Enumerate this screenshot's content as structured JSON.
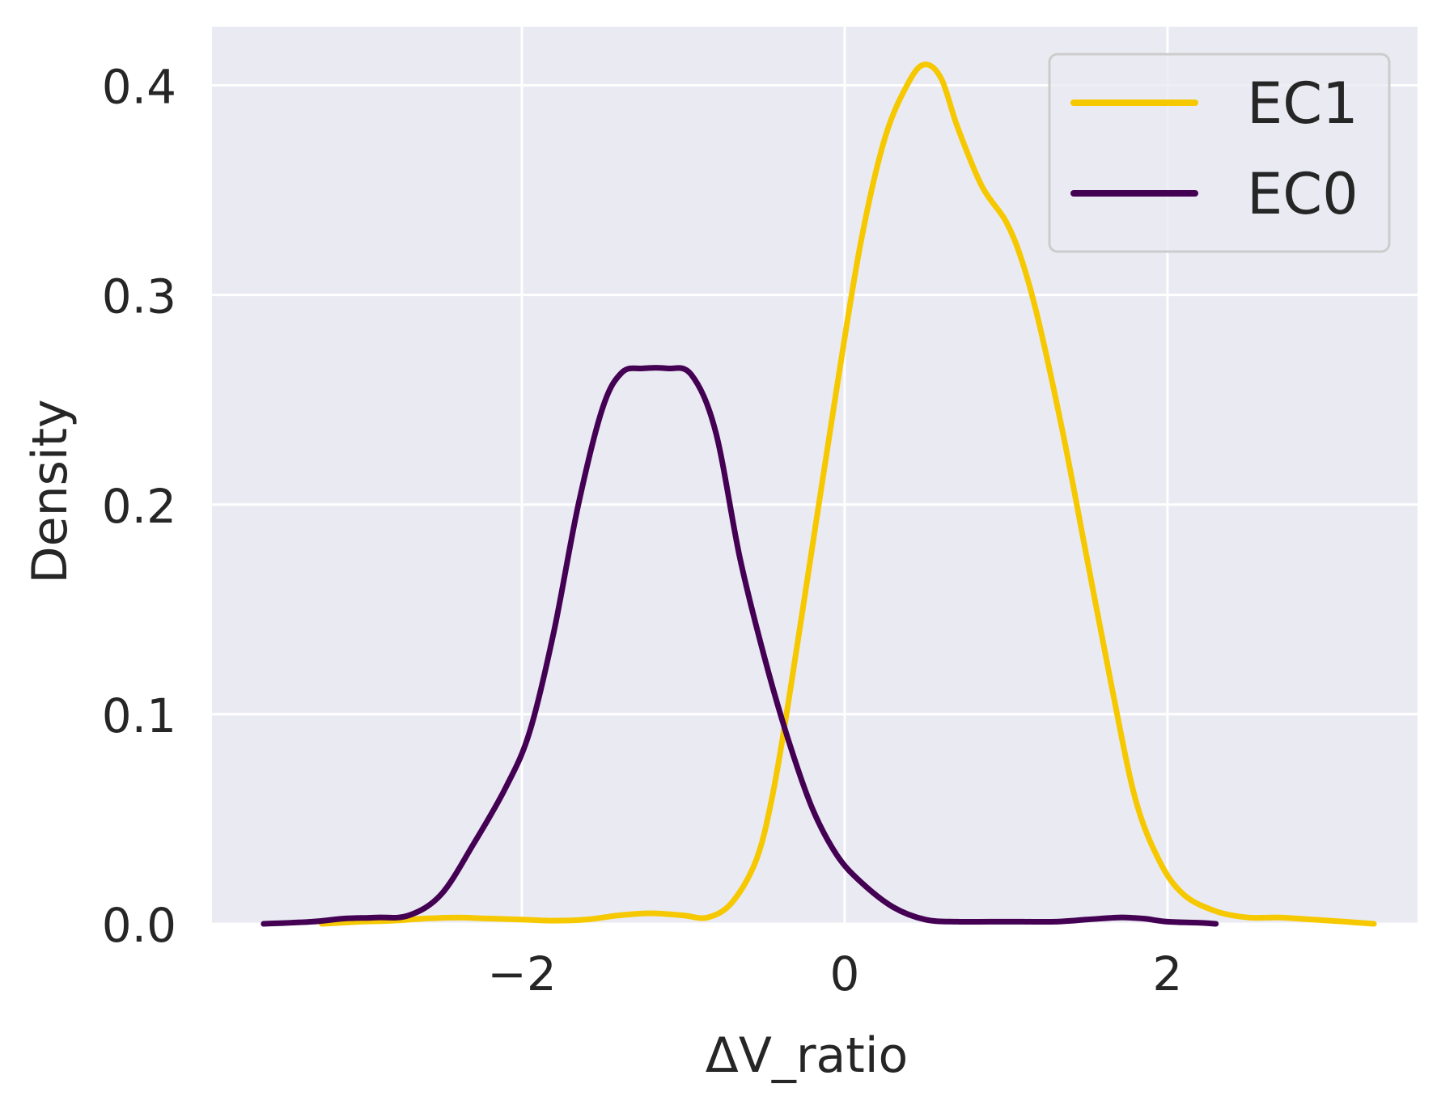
{
  "chart_data": {
    "type": "line",
    "xlabel": "ΔV_ratio",
    "ylabel": "Density",
    "xlim": [
      -3.92,
      3.55
    ],
    "ylim": [
      0,
      0.428
    ],
    "x_ticks": [
      -2,
      0,
      2
    ],
    "x_tick_labels": [
      "−2",
      "0",
      "2"
    ],
    "y_ticks": [
      0.0,
      0.1,
      0.2,
      0.3,
      0.4
    ],
    "y_tick_labels": [
      "0.0",
      "0.1",
      "0.2",
      "0.3",
      "0.4"
    ],
    "grid": true,
    "legend": "top-right",
    "colors": {
      "background": "#eaeaf2",
      "grid": "#ffffff",
      "text": "#262626"
    },
    "series": [
      {
        "name": "EC1",
        "color": "#f5c800",
        "x": [
          -3.24,
          -3.0,
          -2.8,
          -2.6,
          -2.4,
          -2.2,
          -2.0,
          -1.8,
          -1.6,
          -1.4,
          -1.2,
          -1.0,
          -0.85,
          -0.7,
          -0.55,
          -0.45,
          -0.35,
          -0.2,
          -0.05,
          0.1,
          0.25,
          0.4,
          0.5,
          0.6,
          0.7,
          0.85,
          1.0,
          1.1,
          1.2,
          1.35,
          1.5,
          1.65,
          1.8,
          1.95,
          2.1,
          2.3,
          2.5,
          2.7,
          2.9,
          3.1,
          3.28
        ],
        "y": [
          0.0,
          0.001,
          0.0015,
          0.0025,
          0.003,
          0.0025,
          0.002,
          0.0015,
          0.002,
          0.004,
          0.005,
          0.004,
          0.003,
          0.01,
          0.03,
          0.06,
          0.105,
          0.18,
          0.255,
          0.325,
          0.375,
          0.402,
          0.41,
          0.403,
          0.38,
          0.352,
          0.335,
          0.316,
          0.288,
          0.235,
          0.175,
          0.115,
          0.06,
          0.03,
          0.014,
          0.006,
          0.003,
          0.003,
          0.002,
          0.001,
          0.0
        ]
      },
      {
        "name": "EC0",
        "color": "#440154",
        "x": [
          -3.6,
          -3.3,
          -3.1,
          -2.9,
          -2.7,
          -2.5,
          -2.3,
          -2.1,
          -1.95,
          -1.8,
          -1.65,
          -1.5,
          -1.38,
          -1.25,
          -1.1,
          -0.95,
          -0.8,
          -0.65,
          -0.5,
          -0.35,
          -0.2,
          -0.05,
          0.1,
          0.3,
          0.5,
          0.7,
          0.9,
          1.1,
          1.3,
          1.5,
          1.7,
          1.85,
          2.0,
          2.2,
          2.3
        ],
        "y": [
          0.0,
          0.001,
          0.0025,
          0.003,
          0.004,
          0.014,
          0.038,
          0.065,
          0.092,
          0.14,
          0.2,
          0.246,
          0.263,
          0.265,
          0.265,
          0.262,
          0.235,
          0.175,
          0.128,
          0.088,
          0.055,
          0.033,
          0.02,
          0.008,
          0.002,
          0.001,
          0.001,
          0.001,
          0.001,
          0.002,
          0.003,
          0.0025,
          0.001,
          0.0005,
          0.0
        ]
      }
    ]
  }
}
